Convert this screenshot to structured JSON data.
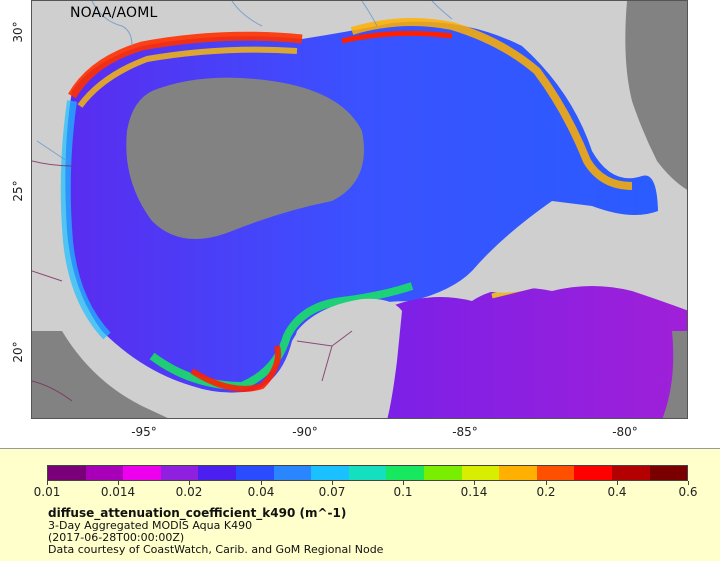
{
  "map": {
    "attribution": "NOAA/AOML",
    "x_ticks": [
      "-95°",
      "-90°",
      "-85°",
      "-80°"
    ],
    "y_ticks": [
      "30°",
      "25°",
      "20°"
    ],
    "land_color": "#cfcfcf",
    "nodata_color": "#828282"
  },
  "legend": {
    "colorbar_colors": [
      "#7a007a",
      "#a800b8",
      "#ee00ee",
      "#9020e0",
      "#4a1ff0",
      "#2a4cff",
      "#2a86ff",
      "#1ac0ff",
      "#14e0c0",
      "#18e860",
      "#7aee00",
      "#d8ee00",
      "#ffb000",
      "#ff5000",
      "#ff0000",
      "#b40000",
      "#7a0000"
    ],
    "tick_labels": [
      "0.01",
      "0.014",
      "0.02",
      "0.04",
      "0.07",
      "0.1",
      "0.14",
      "0.2",
      "0.4",
      "0.6"
    ],
    "variable": "diffuse_attenuation_coefficient_k490 (m^-1)",
    "product": "3-Day Aggregated MODIS Aqua K490",
    "date": "(2017-06-28T00:00:00Z)",
    "credit": "Data courtesy of CoastWatch, Carib. and GoM Regional Node"
  }
}
